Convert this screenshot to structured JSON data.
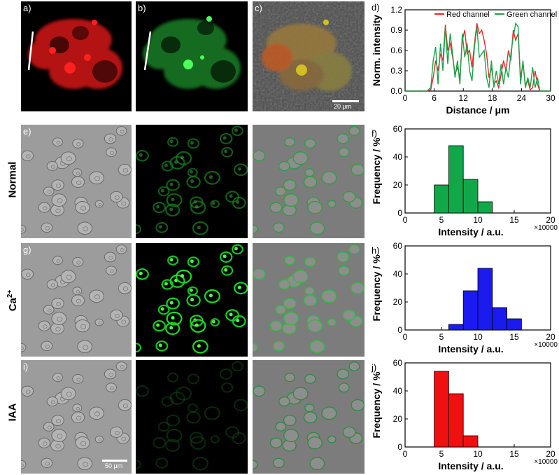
{
  "panel_labels": {
    "a": "a)",
    "b": "b)",
    "c": "c)",
    "d": "d)",
    "e": "e)",
    "f": "f)",
    "g": "g)",
    "h": "h)",
    "i": "i)",
    "j": "j)"
  },
  "row_labels": {
    "normal": "Normal",
    "ca_base": "Ca",
    "ca_sup": "2+",
    "iaa": "IAA"
  },
  "scale_bars": {
    "top": "20 μm",
    "bottom": "50 μm"
  },
  "colors": {
    "red_channel": "#e8262a",
    "green_channel": "#1aa34a",
    "green_bar": "#12a84a",
    "blue_bar": "#1b1bf0",
    "red_bar": "#f01010"
  },
  "chart_data": [
    {
      "id": "d",
      "type": "line",
      "xlabel": "Distance / μm",
      "ylabel": "Norm. intensity",
      "xlim": [
        0,
        30
      ],
      "ylim": [
        0,
        1.2
      ],
      "xticks": [
        "0",
        "6",
        "12",
        "18",
        "24",
        "30"
      ],
      "yticks": [
        "0.0",
        "0.3",
        "0.6",
        "0.9",
        "1.2"
      ],
      "legend_position": "top",
      "series": [
        {
          "name": "Red channel",
          "color": "#e8262a",
          "x": [
            0,
            4.5,
            5.3,
            5.8,
            6.3,
            6.8,
            7.3,
            7.8,
            8.3,
            8.8,
            9.3,
            9.8,
            10.3,
            10.8,
            11.3,
            11.8,
            12.3,
            12.8,
            13.3,
            13.8,
            14.3,
            14.8,
            15.3,
            15.8,
            16.3,
            16.8,
            17.3,
            17.8,
            18.3,
            18.8,
            19.3,
            19.8,
            20.3,
            20.8,
            21.3,
            21.8,
            22.3,
            22.8,
            23.3,
            23.8,
            24.3,
            24.8,
            25.3,
            25.8,
            26.3,
            26.8,
            27.3,
            27.8,
            28.5,
            30
          ],
          "y": [
            0.0,
            0.0,
            0.02,
            0.2,
            0.45,
            0.3,
            0.55,
            0.45,
            0.98,
            0.6,
            0.7,
            0.5,
            0.25,
            0.35,
            0.2,
            0.75,
            0.9,
            0.55,
            0.6,
            0.35,
            0.7,
            1.0,
            0.85,
            0.9,
            0.75,
            0.55,
            0.2,
            0.35,
            0.1,
            0.15,
            0.05,
            0.25,
            0.45,
            0.3,
            0.6,
            0.45,
            0.9,
            0.75,
            0.85,
            0.2,
            0.4,
            0.1,
            0.15,
            0.02,
            0.05,
            0.3,
            0.1,
            0.0,
            0.0,
            0.0
          ]
        },
        {
          "name": "Green channel",
          "color": "#1aa34a",
          "x": [
            0,
            4.5,
            5.3,
            5.8,
            6.3,
            6.8,
            7.3,
            7.8,
            8.3,
            8.8,
            9.3,
            9.8,
            10.3,
            10.8,
            11.3,
            11.8,
            12.3,
            12.8,
            13.3,
            13.8,
            14.3,
            14.8,
            15.3,
            15.8,
            16.3,
            16.8,
            17.3,
            17.8,
            18.3,
            18.8,
            19.3,
            19.8,
            20.3,
            20.8,
            21.3,
            21.8,
            22.3,
            22.8,
            23.3,
            23.8,
            24.3,
            24.8,
            25.3,
            25.8,
            26.3,
            26.8,
            27.3,
            27.8,
            28.5,
            30
          ],
          "y": [
            0.0,
            0.0,
            0.05,
            0.45,
            0.65,
            0.1,
            0.7,
            0.3,
            0.95,
            0.4,
            0.85,
            0.55,
            0.2,
            0.45,
            0.1,
            0.85,
            0.5,
            0.7,
            0.3,
            0.15,
            0.65,
            0.95,
            0.5,
            0.55,
            0.6,
            0.2,
            0.05,
            0.45,
            0.05,
            0.3,
            0.1,
            0.4,
            0.1,
            0.35,
            0.2,
            0.55,
            0.8,
            1.0,
            0.95,
            0.1,
            0.45,
            0.05,
            0.2,
            0.05,
            0.35,
            0.05,
            0.2,
            0.0,
            0.0,
            0.0
          ]
        }
      ]
    },
    {
      "id": "f",
      "type": "bar",
      "xlabel": "Intensity / a.u.",
      "ylabel": "Frequency / %",
      "multiplier": "×10000",
      "xlim": [
        0,
        20
      ],
      "ylim": [
        0,
        60
      ],
      "xticks": [
        "0",
        "5",
        "10",
        "15",
        "20"
      ],
      "yticks": [
        "0",
        "20",
        "40",
        "60"
      ],
      "bin_width": 2,
      "color": "#12a84a",
      "x": [
        5,
        7,
        9,
        11
      ],
      "values": [
        20,
        48,
        24,
        8
      ]
    },
    {
      "id": "h",
      "type": "bar",
      "xlabel": "Intensity / a.u.",
      "ylabel": "Frequency / %",
      "multiplier": "×10000",
      "xlim": [
        0,
        20
      ],
      "ylim": [
        0,
        60
      ],
      "xticks": [
        "0",
        "5",
        "10",
        "15",
        "20"
      ],
      "yticks": [
        "0",
        "20",
        "40",
        "60"
      ],
      "bin_width": 2,
      "color": "#1b1bf0",
      "x": [
        7,
        9,
        11,
        13,
        15
      ],
      "values": [
        4,
        28,
        44,
        16,
        8
      ]
    },
    {
      "id": "j",
      "type": "bar",
      "xlabel": "Intensity / a.u.",
      "ylabel": "Frequency / %",
      "multiplier": "×10000",
      "xlim": [
        0,
        20
      ],
      "ylim": [
        0,
        60
      ],
      "xticks": [
        "0",
        "5",
        "10",
        "15",
        "20"
      ],
      "yticks": [
        "0",
        "20",
        "40",
        "60"
      ],
      "bin_width": 2,
      "color": "#f01010",
      "x": [
        5,
        7,
        9
      ],
      "values": [
        54,
        38,
        8
      ]
    }
  ]
}
